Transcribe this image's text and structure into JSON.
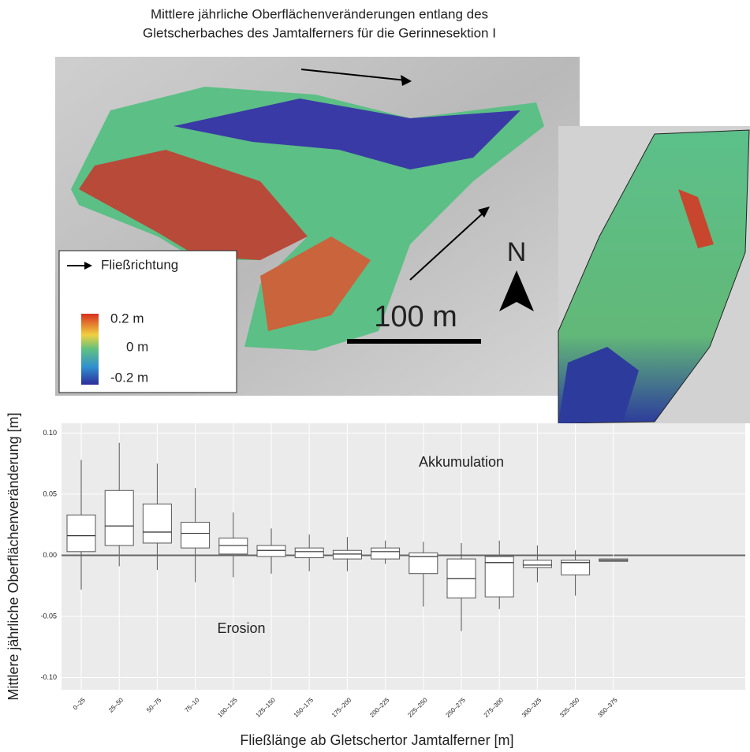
{
  "title": [
    "Mittlere jährliche Oberflächenveränderungen entlang des",
    "Gletscherbaches des Jamtalferners für die Gerinnesektion I"
  ],
  "map": {
    "legend_flow": "Fließrichtung",
    "legend_scale": [
      "0.2 m",
      "0 m",
      "-0.2 m"
    ],
    "scalebar": "100 m",
    "north": "N"
  },
  "chart_data": {
    "type": "box",
    "categories": [
      "0–25",
      "25–50",
      "50–75",
      "75–10",
      "100–125",
      "125–150",
      "150–175",
      "175–200",
      "200–225",
      "225–250",
      "250–275",
      "275–300",
      "300–325",
      "325–350",
      "350–375"
    ],
    "low": [
      -0.028,
      -0.009,
      -0.012,
      -0.022,
      -0.018,
      -0.015,
      -0.013,
      -0.013,
      -0.007,
      -0.042,
      -0.062,
      -0.044,
      -0.022,
      -0.033,
      -0.005
    ],
    "q1": [
      0.003,
      0.008,
      0.01,
      0.006,
      0.001,
      -0.001,
      -0.002,
      -0.003,
      -0.003,
      -0.015,
      -0.035,
      -0.034,
      -0.01,
      -0.016,
      -0.005
    ],
    "median": [
      0.016,
      0.024,
      0.019,
      0.018,
      0.008,
      0.004,
      0.003,
      0.001,
      0.003,
      -0.001,
      -0.019,
      -0.006,
      -0.008,
      -0.006,
      -0.004
    ],
    "q3": [
      0.033,
      0.053,
      0.042,
      0.027,
      0.014,
      0.008,
      0.006,
      0.004,
      0.006,
      0.002,
      -0.003,
      -0.001,
      -0.004,
      -0.004,
      -0.003
    ],
    "high": [
      0.078,
      0.092,
      0.075,
      0.055,
      0.035,
      0.022,
      0.017,
      0.015,
      0.012,
      0.011,
      0.01,
      0.012,
      0.008,
      0.004,
      -0.003
    ],
    "ylim": [
      -0.11,
      0.108
    ],
    "yticks": [
      {
        "value": -0.1,
        "label": "-0.10"
      },
      -0.05,
      {
        "value": 0,
        "label": "0.00"
      },
      0.05,
      {
        "value": 0.1,
        "label": "0.10"
      }
    ],
    "grid": true,
    "x_label": "Fließlänge ab Gletschertor Jamtalferner [m]",
    "y_label": "Mittlere jährliche Oberflächenveränderung [m]",
    "annotations": [
      "Akkumulation",
      "Erosion"
    ]
  }
}
